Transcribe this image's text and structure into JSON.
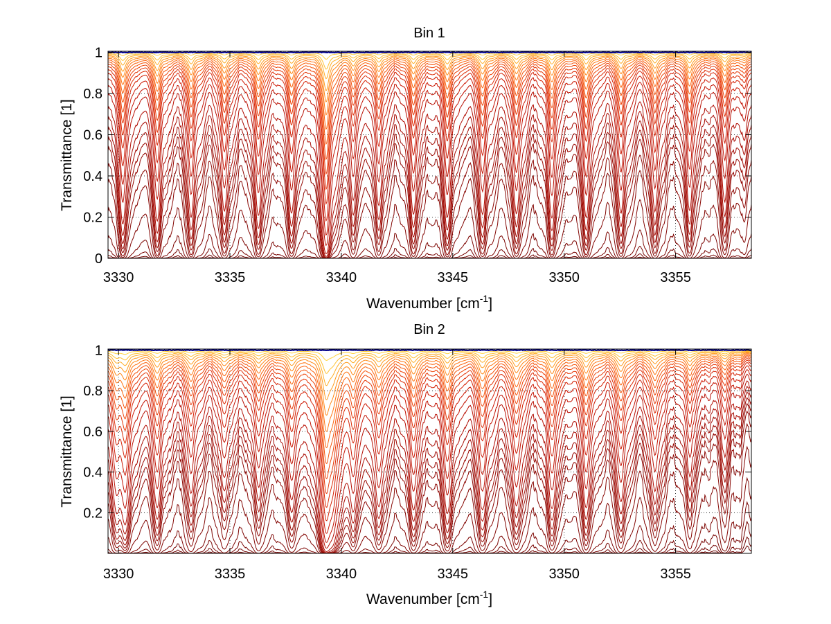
{
  "figure": {
    "background": "#ffffff"
  },
  "chart_data": [
    {
      "type": "line",
      "title": "Bin 1",
      "xlabel": "Wavenumber [cm",
      "xlabel_superscript": "-1",
      "xlabel_suffix": "]",
      "ylabel": "Transmittance [1]",
      "xlim": [
        3329.53,
        3358.4
      ],
      "ylim": [
        0,
        1.005
      ],
      "xticks": [
        3330,
        3335,
        3340,
        3345,
        3350,
        3355
      ],
      "xtick_labels": [
        "3330",
        "3335",
        "3340",
        "3345",
        "3350",
        "3355"
      ],
      "yticks": [
        0,
        0.2,
        0.4,
        0.6,
        0.8,
        1
      ],
      "ytick_labels": [
        "0",
        "0.2",
        "0.4",
        "0.6",
        "0.8",
        "1"
      ],
      "grid": "dotted",
      "legend": "none",
      "line_centers": [
        3330.19,
        3331.74,
        3333.26,
        3334.75,
        3336.27,
        3337.76,
        3339.32,
        3340.53,
        3341.68,
        3343.23,
        3344.75,
        3346.34,
        3347.86,
        3349.44,
        3350.99,
        3352.55,
        3354.07,
        3355.62,
        3357.2,
        3358.1
      ],
      "line_strengths": [
        1.5,
        1.4,
        1.35,
        1.25,
        1.3,
        1.2,
        3.4,
        0.9,
        1.1,
        1.25,
        1.3,
        1.3,
        1.3,
        1.35,
        1.3,
        1.25,
        1.25,
        1.2,
        1.0,
        0.35
      ],
      "line_width": 0.16,
      "series_continuum_transmittance": [
        1.0,
        0.998,
        0.995,
        0.992,
        0.988,
        0.984,
        0.979,
        0.973,
        0.966,
        0.958,
        0.949,
        0.938,
        0.925,
        0.905,
        0.88,
        0.85,
        0.8,
        0.76,
        0.72,
        0.68,
        0.64,
        0.57,
        0.5,
        0.36,
        0.2,
        0.1,
        0.045,
        0.015,
        0.004
      ],
      "series_colors": [
        "#00008b",
        "#ffd23a",
        "#ffc02e",
        "#ffad24",
        "#ff9a1c",
        "#ff8715",
        "#ff7410",
        "#fb620c",
        "#f55209",
        "#ee4307",
        "#e53505",
        "#dd2a04",
        "#d42003",
        "#cc1803",
        "#c21202",
        "#b80e02",
        "#b00b02",
        "#a80a02",
        "#a10902",
        "#9a0802",
        "#930702",
        "#8d0602",
        "#870602",
        "#820502",
        "#7d0502",
        "#780402",
        "#730402",
        "#6e0302",
        "#690302"
      ]
    },
    {
      "type": "line",
      "title": "Bin 2",
      "xlabel": "Wavenumber [cm",
      "xlabel_superscript": "-1",
      "xlabel_suffix": "]",
      "ylabel": "Transmittance [1]",
      "xlim": [
        3329.53,
        3358.4
      ],
      "ylim": [
        0,
        1.005
      ],
      "xticks": [
        3330,
        3335,
        3340,
        3345,
        3350,
        3355
      ],
      "xtick_labels": [
        "3330",
        "3335",
        "3340",
        "3345",
        "3350",
        "3355"
      ],
      "yticks": [
        0.2,
        0.4,
        0.6,
        0.8,
        1
      ],
      "ytick_labels": [
        "0.2",
        "0.4",
        "0.6",
        "0.8",
        "1"
      ],
      "grid": "dotted",
      "legend": "none",
      "line_centers": [
        3329.9,
        3330.3,
        3331.74,
        3333.26,
        3334.75,
        3336.27,
        3337.76,
        3339.32,
        3339.6,
        3340.53,
        3341.68,
        3343.23,
        3344.75,
        3346.34,
        3347.86,
        3349.44,
        3350.99,
        3352.55,
        3354.07,
        3355.62,
        3357.2
      ],
      "line_strengths": [
        0.9,
        1.0,
        0.9,
        0.75,
        0.6,
        0.65,
        0.75,
        3.0,
        1.2,
        0.8,
        0.9,
        0.95,
        1.0,
        1.0,
        0.95,
        0.95,
        0.9,
        0.85,
        0.75,
        0.55,
        0.35
      ],
      "line_width": 0.2,
      "series_continuum_transmittance": [
        1.0,
        0.997,
        0.993,
        0.989,
        0.984,
        0.978,
        0.971,
        0.963,
        0.954,
        0.944,
        0.932,
        0.918,
        0.9,
        0.875,
        0.845,
        0.81,
        0.76,
        0.72,
        0.68,
        0.64,
        0.6,
        0.55,
        0.47,
        0.34,
        0.19,
        0.1,
        0.045,
        0.015,
        0.004
      ],
      "series_colors": [
        "#00008b",
        "#ffd23a",
        "#ffc02e",
        "#ffad24",
        "#ff9a1c",
        "#ff8715",
        "#ff7410",
        "#fb620c",
        "#f55209",
        "#ee4307",
        "#e53505",
        "#dd2a04",
        "#d42003",
        "#cc1803",
        "#c21202",
        "#b80e02",
        "#b00b02",
        "#a80a02",
        "#a10902",
        "#9a0802",
        "#930702",
        "#8d0602",
        "#870602",
        "#820502",
        "#7d0502",
        "#780402",
        "#730402",
        "#6e0302",
        "#690302"
      ]
    }
  ]
}
